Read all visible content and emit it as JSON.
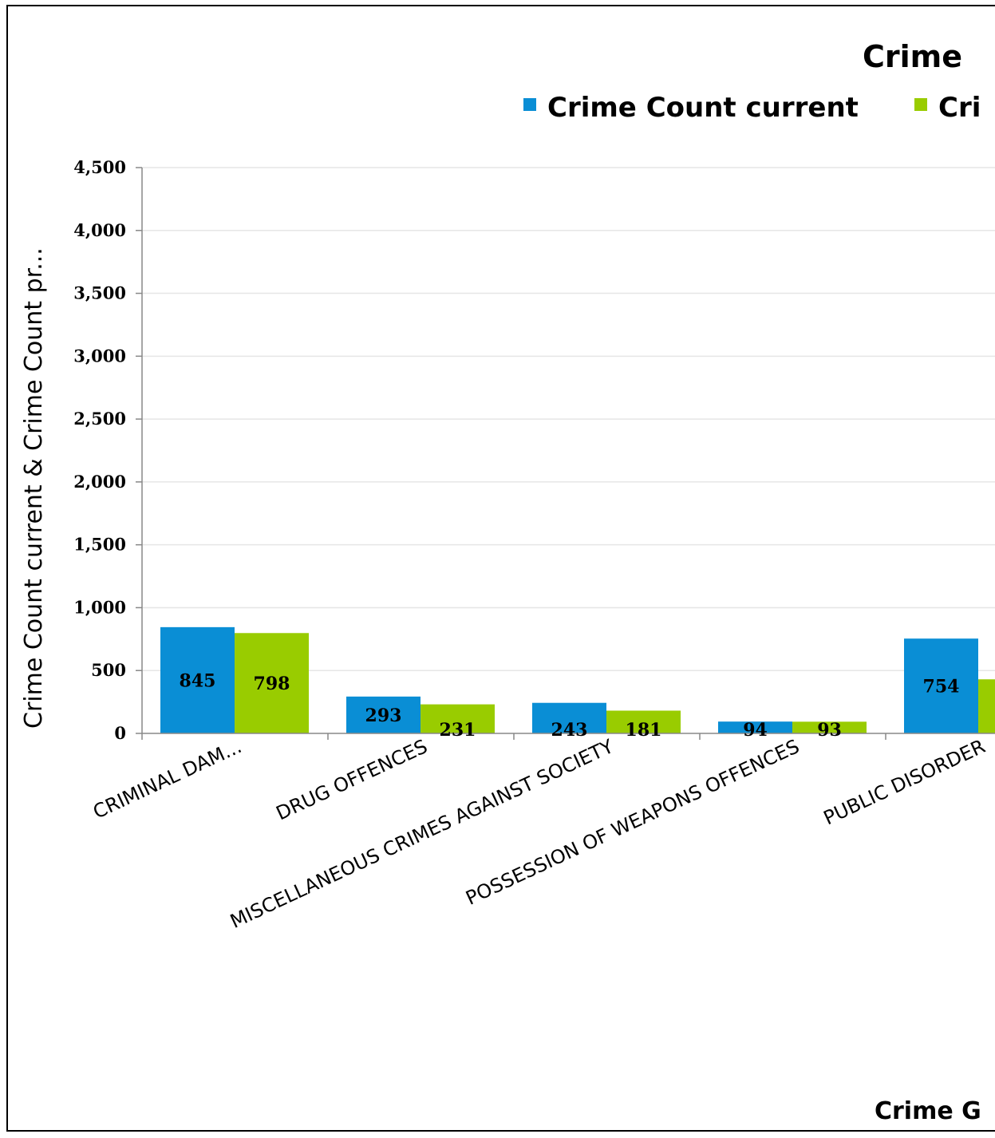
{
  "colors": {
    "series_current": "#0A8ED5",
    "series_previous": "#99CC00",
    "grid": "#E6E6E6",
    "axis": "#888888"
  },
  "chart_data": {
    "type": "bar",
    "title": "Crime",
    "xlabel": "Crime G",
    "ylabel": "Crime Count current & Crime Count pr...",
    "ylim": [
      0,
      4500
    ],
    "yticks": [
      0,
      500,
      1000,
      1500,
      2000,
      2500,
      3000,
      3500,
      4000,
      4500
    ],
    "ytick_labels": [
      "0",
      "500",
      "1,000",
      "1,500",
      "2,000",
      "2,500",
      "3,000",
      "3,500",
      "4,000",
      "4,500"
    ],
    "grid": true,
    "legend_position": "top",
    "legend": [
      "Crime Count current",
      "Cri"
    ],
    "categories": [
      "CRIMINAL DAM...",
      "DRUG OFFENCES",
      "MISCELLANEOUS CRIMES AGAINST SOCIETY",
      "POSSESSION OF WEAPONS OFFENCES",
      "PUBLIC DISORDER"
    ],
    "series": [
      {
        "name": "Crime Count current",
        "values": [
          845,
          293,
          243,
          94,
          754
        ],
        "labels": [
          "845",
          "293",
          "243",
          "94",
          "754"
        ]
      },
      {
        "values": [
          798,
          231,
          181,
          93,
          430
        ],
        "labels": [
          "798",
          "231",
          "181",
          "93",
          ""
        ]
      }
    ]
  }
}
